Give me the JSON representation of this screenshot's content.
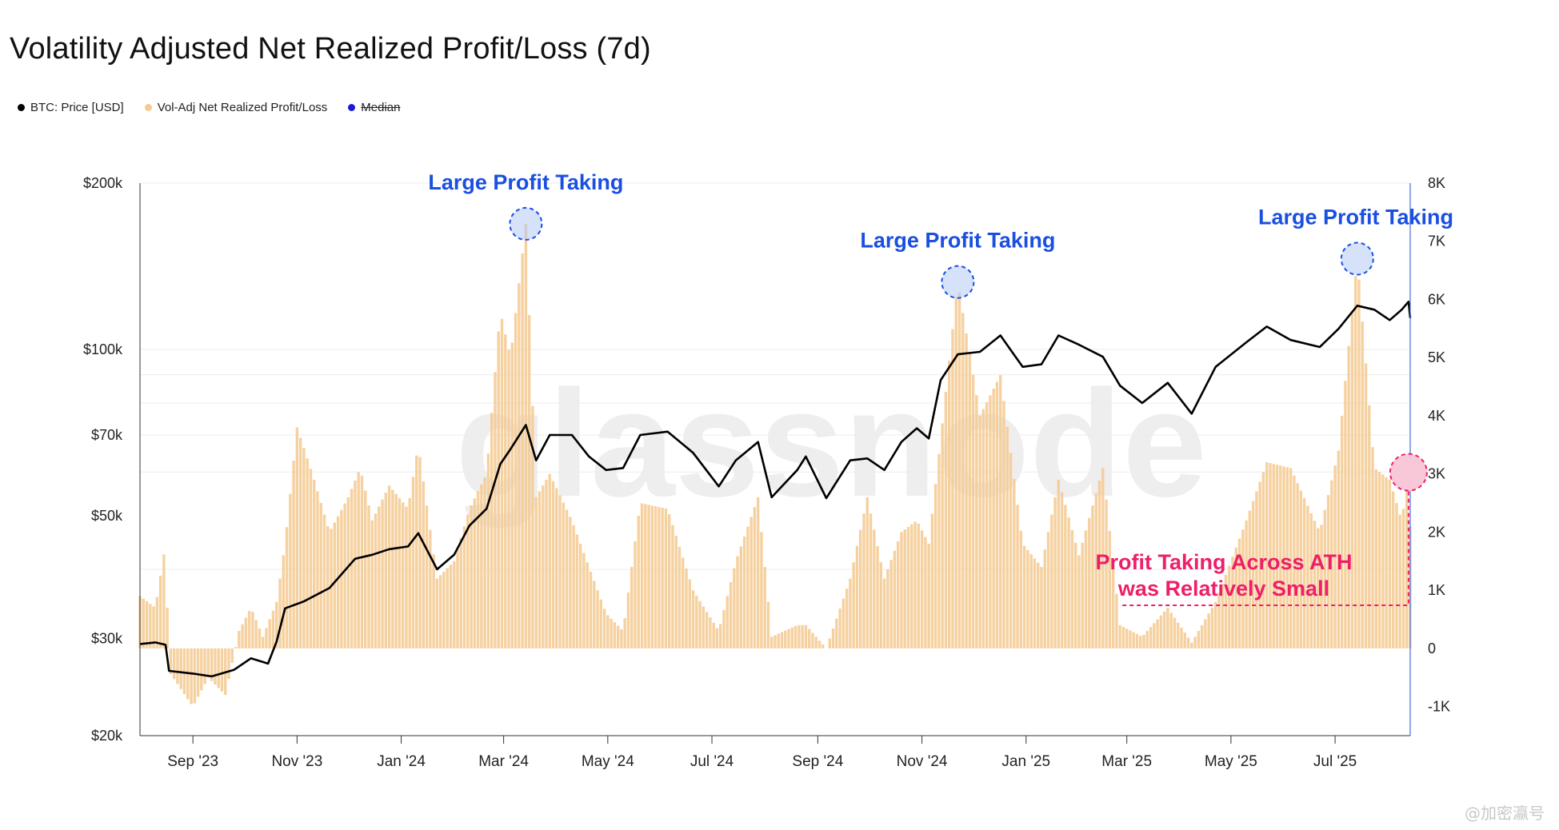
{
  "title": "Volatility Adjusted Net Realized Profit/Loss (7d)",
  "legend": [
    {
      "label": "BTC: Price [USD]",
      "color": "#000000",
      "strike": false
    },
    {
      "label": "Vol-Adj Net Realized Profit/Loss",
      "color": "#f5c98f",
      "strike": false
    },
    {
      "label": "Median",
      "color": "#1a1ad6",
      "strike": true
    }
  ],
  "watermark": "glassnode",
  "corner_mark": "@加密瀛号",
  "chart_data": {
    "type": "line+bar",
    "x_ticks": [
      "Sep '23",
      "Nov '23",
      "Jan '24",
      "Mar '24",
      "May '24",
      "Jul '24",
      "Sep '24",
      "Nov '24",
      "Jan '25",
      "Mar '25",
      "May '25",
      "Jul '25"
    ],
    "x_range": [
      "2023-08-01",
      "2025-08-14"
    ],
    "y_left": {
      "scale": "log",
      "range": [
        20000,
        200000
      ],
      "ticks": [
        {
          "v": 20000,
          "label": "$20k"
        },
        {
          "v": 30000,
          "label": "$30k"
        },
        {
          "v": 50000,
          "label": "$50k"
        },
        {
          "v": 70000,
          "label": "$70k"
        },
        {
          "v": 100000,
          "label": "$100k"
        },
        {
          "v": 200000,
          "label": "$200k"
        }
      ]
    },
    "y_right": {
      "scale": "linear",
      "range": [
        -1500,
        8000
      ],
      "ticks": [
        {
          "v": -1000,
          "label": "-1K"
        },
        {
          "v": 0,
          "label": "0"
        },
        {
          "v": 1000,
          "label": "1K"
        },
        {
          "v": 2000,
          "label": "2K"
        },
        {
          "v": 3000,
          "label": "3K"
        },
        {
          "v": 4000,
          "label": "4K"
        },
        {
          "v": 5000,
          "label": "5K"
        },
        {
          "v": 6000,
          "label": "6K"
        },
        {
          "v": 7000,
          "label": "7K"
        },
        {
          "v": 8000,
          "label": "8K"
        }
      ]
    },
    "series": [
      {
        "name": "BTC: Price [USD]",
        "axis": "left",
        "kind": "line",
        "color": "#000000",
        "points": [
          [
            "2023-08-01",
            29300
          ],
          [
            "2023-08-10",
            29500
          ],
          [
            "2023-08-16",
            29200
          ],
          [
            "2023-08-18",
            26200
          ],
          [
            "2023-09-01",
            25900
          ],
          [
            "2023-09-12",
            25600
          ],
          [
            "2023-09-25",
            26300
          ],
          [
            "2023-10-05",
            27600
          ],
          [
            "2023-10-15",
            27000
          ],
          [
            "2023-10-20",
            29600
          ],
          [
            "2023-10-25",
            34000
          ],
          [
            "2023-11-05",
            35000
          ],
          [
            "2023-11-20",
            37000
          ],
          [
            "2023-12-05",
            41800
          ],
          [
            "2023-12-15",
            42500
          ],
          [
            "2023-12-25",
            43500
          ],
          [
            "2024-01-05",
            44000
          ],
          [
            "2024-01-11",
            46500
          ],
          [
            "2024-01-22",
            40000
          ],
          [
            "2024-02-01",
            42500
          ],
          [
            "2024-02-10",
            48000
          ],
          [
            "2024-02-20",
            51500
          ],
          [
            "2024-02-28",
            62000
          ],
          [
            "2024-03-05",
            66000
          ],
          [
            "2024-03-14",
            73000
          ],
          [
            "2024-03-20",
            63000
          ],
          [
            "2024-03-28",
            70000
          ],
          [
            "2024-04-10",
            70000
          ],
          [
            "2024-04-20",
            64000
          ],
          [
            "2024-04-30",
            60500
          ],
          [
            "2024-05-10",
            61000
          ],
          [
            "2024-05-20",
            70000
          ],
          [
            "2024-06-05",
            71000
          ],
          [
            "2024-06-20",
            65000
          ],
          [
            "2024-07-05",
            56500
          ],
          [
            "2024-07-15",
            63000
          ],
          [
            "2024-07-28",
            68000
          ],
          [
            "2024-08-05",
            54000
          ],
          [
            "2024-08-20",
            60500
          ],
          [
            "2024-08-25",
            64000
          ],
          [
            "2024-09-06",
            53800
          ],
          [
            "2024-09-20",
            63000
          ],
          [
            "2024-09-30",
            63500
          ],
          [
            "2024-10-10",
            60500
          ],
          [
            "2024-10-20",
            68000
          ],
          [
            "2024-10-29",
            72000
          ],
          [
            "2024-11-05",
            69000
          ],
          [
            "2024-11-12",
            88000
          ],
          [
            "2024-11-22",
            98000
          ],
          [
            "2024-12-05",
            99000
          ],
          [
            "2024-12-17",
            106000
          ],
          [
            "2024-12-30",
            93000
          ],
          [
            "2025-01-10",
            94000
          ],
          [
            "2025-01-20",
            106000
          ],
          [
            "2025-02-01",
            102000
          ],
          [
            "2025-02-15",
            97000
          ],
          [
            "2025-02-25",
            86000
          ],
          [
            "2025-03-10",
            80000
          ],
          [
            "2025-03-25",
            87000
          ],
          [
            "2025-04-08",
            76500
          ],
          [
            "2025-04-22",
            93000
          ],
          [
            "2025-05-10",
            103000
          ],
          [
            "2025-05-22",
            110000
          ],
          [
            "2025-06-05",
            104000
          ],
          [
            "2025-06-22",
            101000
          ],
          [
            "2025-07-03",
            109000
          ],
          [
            "2025-07-14",
            120000
          ],
          [
            "2025-07-24",
            118000
          ],
          [
            "2025-08-02",
            113000
          ],
          [
            "2025-08-09",
            118000
          ],
          [
            "2025-08-13",
            122000
          ],
          [
            "2025-08-14",
            114000
          ]
        ]
      },
      {
        "name": "Vol-Adj Net Realized Profit/Loss",
        "axis": "right",
        "kind": "bar",
        "color": "#f5c98f",
        "points": [
          [
            "2023-08-01",
            900
          ],
          [
            "2023-08-10",
            700
          ],
          [
            "2023-08-16",
            1800
          ],
          [
            "2023-08-18",
            -400
          ],
          [
            "2023-08-25",
            -700
          ],
          [
            "2023-09-01",
            -1000
          ],
          [
            "2023-09-10",
            -500
          ],
          [
            "2023-09-20",
            -800
          ],
          [
            "2023-09-28",
            300
          ],
          [
            "2023-10-05",
            700
          ],
          [
            "2023-10-12",
            200
          ],
          [
            "2023-10-20",
            800
          ],
          [
            "2023-10-25",
            1800
          ],
          [
            "2023-11-01",
            3800
          ],
          [
            "2023-11-10",
            3000
          ],
          [
            "2023-11-20",
            2000
          ],
          [
            "2023-12-01",
            2600
          ],
          [
            "2023-12-08",
            3100
          ],
          [
            "2023-12-15",
            2200
          ],
          [
            "2023-12-25",
            2800
          ],
          [
            "2024-01-05",
            2400
          ],
          [
            "2024-01-11",
            3500
          ],
          [
            "2024-01-22",
            1200
          ],
          [
            "2024-02-01",
            1500
          ],
          [
            "2024-02-10",
            2400
          ],
          [
            "2024-02-20",
            3000
          ],
          [
            "2024-02-28",
            5800
          ],
          [
            "2024-03-05",
            5000
          ],
          [
            "2024-03-14",
            7300
          ],
          [
            "2024-03-20",
            2600
          ],
          [
            "2024-03-28",
            3000
          ],
          [
            "2024-04-10",
            2200
          ],
          [
            "2024-04-20",
            1400
          ],
          [
            "2024-04-30",
            600
          ],
          [
            "2024-05-10",
            300
          ],
          [
            "2024-05-20",
            2500
          ],
          [
            "2024-06-05",
            2400
          ],
          [
            "2024-06-20",
            1000
          ],
          [
            "2024-07-05",
            300
          ],
          [
            "2024-07-15",
            1500
          ],
          [
            "2024-07-28",
            2600
          ],
          [
            "2024-08-05",
            200
          ],
          [
            "2024-08-20",
            400
          ],
          [
            "2024-08-25",
            400
          ],
          [
            "2024-09-06",
            0
          ],
          [
            "2024-09-20",
            1200
          ],
          [
            "2024-09-30",
            2600
          ],
          [
            "2024-10-10",
            1200
          ],
          [
            "2024-10-20",
            2000
          ],
          [
            "2024-10-29",
            2200
          ],
          [
            "2024-11-05",
            1800
          ],
          [
            "2024-11-12",
            3600
          ],
          [
            "2024-11-22",
            6300
          ],
          [
            "2024-12-05",
            4000
          ],
          [
            "2024-12-17",
            4700
          ],
          [
            "2024-12-30",
            1800
          ],
          [
            "2025-01-10",
            1400
          ],
          [
            "2025-01-20",
            2900
          ],
          [
            "2025-02-01",
            1600
          ],
          [
            "2025-02-15",
            3100
          ],
          [
            "2025-02-25",
            400
          ],
          [
            "2025-03-10",
            200
          ],
          [
            "2025-03-25",
            700
          ],
          [
            "2025-04-08",
            100
          ],
          [
            "2025-04-22",
            800
          ],
          [
            "2025-05-10",
            2200
          ],
          [
            "2025-05-22",
            3200
          ],
          [
            "2025-06-05",
            3100
          ],
          [
            "2025-06-22",
            2000
          ],
          [
            "2025-07-03",
            3400
          ],
          [
            "2025-07-14",
            6700
          ],
          [
            "2025-07-24",
            3100
          ],
          [
            "2025-08-02",
            2900
          ],
          [
            "2025-08-09",
            2200
          ],
          [
            "2025-08-13",
            3000
          ],
          [
            "2025-08-14",
            2100
          ]
        ]
      }
    ],
    "annotations": [
      {
        "text": "Large Profit Taking",
        "date": "2024-03-14",
        "value": 7300,
        "color": "#1a4fe0"
      },
      {
        "text": "Large Profit Taking",
        "date": "2024-11-22",
        "value": 6300,
        "color": "#1a4fe0"
      },
      {
        "text": "Large Profit Taking",
        "date": "2025-07-14",
        "value": 6700,
        "color": "#1a4fe0"
      },
      {
        "text": [
          "Profit Taking Across ATH",
          "was Relatively Small"
        ],
        "date": "2025-08-13",
        "value": 3000,
        "color": "#ee1e68"
      }
    ]
  }
}
